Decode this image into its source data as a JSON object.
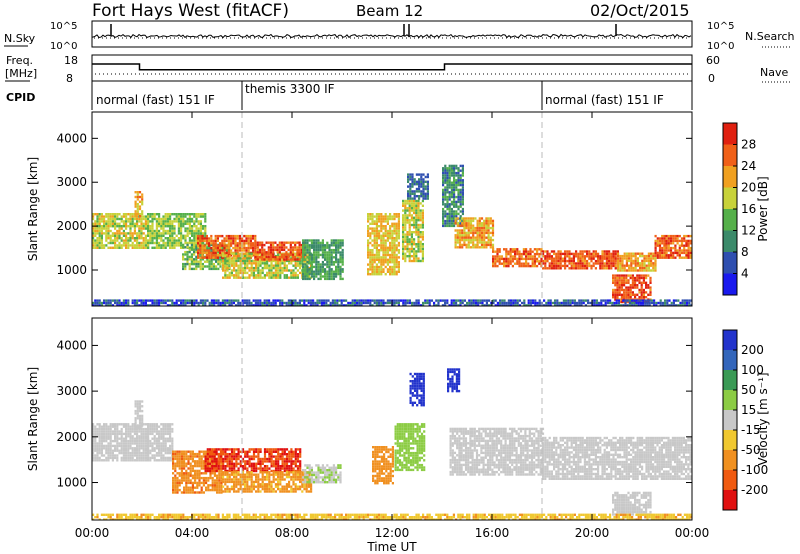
{
  "header": {
    "site_title": "Fort Hays West (fitACF)",
    "beam": "Beam 12",
    "date": "02/Oct/2015"
  },
  "top_panels": {
    "nsky_label": "N.Sky",
    "nsearch_label": "N.Search",
    "noise_ticks_left": [
      "10^5",
      "10^0"
    ],
    "noise_ticks_right": [
      "10^5",
      "10^0"
    ],
    "freq_label_line1": "Freq.",
    "freq_label_line2": "[MHz]",
    "freq_ticks": [
      "18",
      "8"
    ],
    "nave_label": "Nave",
    "nave_ticks": [
      "60",
      "0"
    ],
    "cpid_label": "CPID",
    "cpid_segments": [
      {
        "label": "normal (fast) 151 IF",
        "start_hour": 0,
        "end_hour": 6
      },
      {
        "label": "themis 3300 IF",
        "start_hour": 6,
        "end_hour": 18
      },
      {
        "label": "normal (fast) 151 IF",
        "start_hour": 18,
        "end_hour": 24
      }
    ],
    "freq_steps": [
      {
        "start_hour": 0,
        "end_hour": 1.9,
        "mhz": 14.8
      },
      {
        "start_hour": 1.9,
        "end_hour": 14.1,
        "mhz": 12.2
      },
      {
        "start_hour": 14.1,
        "end_hour": 24,
        "mhz": 14.8
      }
    ]
  },
  "range_axis": {
    "ylabel": "Slant Range [km]",
    "ticks": [
      "1000",
      "2000",
      "3000",
      "4000"
    ],
    "ylim": [
      180,
      4600
    ]
  },
  "time_axis": {
    "xlabel": "Time UT",
    "ticks": [
      "00:00",
      "04:00",
      "08:00",
      "12:00",
      "16:00",
      "20:00",
      "00:00"
    ]
  },
  "power_colorbar": {
    "title": "Power [dB]",
    "ticks": [
      "4",
      "8",
      "12",
      "16",
      "20",
      "24",
      "28"
    ],
    "colors": [
      "#1a1aee",
      "#2f4fb0",
      "#3b8a6a",
      "#55b04a",
      "#c8d23a",
      "#f0a020",
      "#f06018",
      "#e02010"
    ]
  },
  "velocity_colorbar": {
    "title": "Velocity [m s⁻¹]",
    "ticks": [
      "200",
      "100",
      "50",
      "15",
      "-15",
      "-50",
      "-100",
      "-200"
    ],
    "colors": [
      "#2233cc",
      "#3366bb",
      "#3a9a55",
      "#8ccc44",
      "#c8c8c8",
      "#f0c830",
      "#f09020",
      "#f05a10",
      "#e01010"
    ]
  },
  "chart_data": [
    {
      "type": "heatmap",
      "name": "power",
      "x_unit": "hour UT",
      "y_unit": "km",
      "regions": [
        {
          "t0": 0.0,
          "t1": 2.2,
          "r0": 1500,
          "r1": 2300,
          "power": 18
        },
        {
          "t0": 1.7,
          "t1": 2.0,
          "r0": 2200,
          "r1": 2800,
          "power": 22
        },
        {
          "t0": 2.2,
          "t1": 4.5,
          "r0": 1500,
          "r1": 2300,
          "power": 16
        },
        {
          "t0": 3.6,
          "t1": 5.5,
          "r0": 1000,
          "r1": 1600,
          "power": 14
        },
        {
          "t0": 4.2,
          "t1": 6.5,
          "r0": 1300,
          "r1": 1800,
          "power": 26
        },
        {
          "t0": 5.2,
          "t1": 8.8,
          "r0": 800,
          "r1": 1400,
          "power": 18
        },
        {
          "t0": 6.5,
          "t1": 8.5,
          "r0": 1250,
          "r1": 1650,
          "power": 27
        },
        {
          "t0": 8.4,
          "t1": 10.0,
          "r0": 800,
          "r1": 1700,
          "power": 12
        },
        {
          "t0": 11.0,
          "t1": 12.3,
          "r0": 900,
          "r1": 2300,
          "power": 20
        },
        {
          "t0": 12.4,
          "t1": 13.2,
          "r0": 1200,
          "r1": 2600,
          "power": 18
        },
        {
          "t0": 12.6,
          "t1": 13.4,
          "r0": 2600,
          "r1": 3200,
          "power": 8
        },
        {
          "t0": 14.0,
          "t1": 14.8,
          "r0": 2000,
          "r1": 3400,
          "power": 10
        },
        {
          "t0": 14.5,
          "t1": 16.0,
          "r0": 1500,
          "r1": 2200,
          "power": 22
        },
        {
          "t0": 16.0,
          "t1": 18.0,
          "r0": 1100,
          "r1": 1500,
          "power": 26
        },
        {
          "t0": 18.0,
          "t1": 21.0,
          "r0": 1050,
          "r1": 1450,
          "power": 27
        },
        {
          "t0": 21.0,
          "t1": 22.5,
          "r0": 1000,
          "r1": 1400,
          "power": 22
        },
        {
          "t0": 22.5,
          "t1": 24.0,
          "r0": 1300,
          "r1": 1800,
          "power": 26
        },
        {
          "t0": 20.8,
          "t1": 22.3,
          "r0": 250,
          "r1": 900,
          "power": 27
        },
        {
          "t0": 0.0,
          "t1": 24.0,
          "r0": 180,
          "r1": 330,
          "power": 6
        }
      ]
    },
    {
      "type": "heatmap",
      "name": "velocity",
      "x_unit": "hour UT",
      "y_unit": "km",
      "regions": [
        {
          "t0": 0.0,
          "t1": 2.2,
          "r0": 1500,
          "r1": 2300,
          "velocity": 0
        },
        {
          "t0": 1.7,
          "t1": 2.0,
          "r0": 2200,
          "r1": 2800,
          "velocity": 0
        },
        {
          "t0": 2.2,
          "t1": 3.2,
          "r0": 1500,
          "r1": 2300,
          "velocity": 0
        },
        {
          "t0": 3.2,
          "t1": 5.2,
          "r0": 800,
          "r1": 1700,
          "velocity": -90
        },
        {
          "t0": 4.5,
          "t1": 8.3,
          "r0": 1250,
          "r1": 1750,
          "velocity": -200
        },
        {
          "t0": 5.2,
          "t1": 8.8,
          "r0": 800,
          "r1": 1250,
          "velocity": -60
        },
        {
          "t0": 8.4,
          "t1": 9.9,
          "r0": 1000,
          "r1": 1400,
          "velocity": 10
        },
        {
          "t0": 11.2,
          "t1": 12.0,
          "r0": 1000,
          "r1": 1800,
          "velocity": -70
        },
        {
          "t0": 12.1,
          "t1": 13.3,
          "r0": 1300,
          "r1": 2300,
          "velocity": 35
        },
        {
          "t0": 12.7,
          "t1": 13.3,
          "r0": 2700,
          "r1": 3400,
          "velocity": 250
        },
        {
          "t0": 14.2,
          "t1": 14.7,
          "r0": 3000,
          "r1": 3500,
          "velocity": 250
        },
        {
          "t0": 14.3,
          "t1": 18.0,
          "r0": 1200,
          "r1": 2200,
          "velocity": 0
        },
        {
          "t0": 18.0,
          "t1": 24.0,
          "r0": 1100,
          "r1": 2000,
          "velocity": 0
        },
        {
          "t0": 20.8,
          "t1": 22.3,
          "r0": 300,
          "r1": 800,
          "velocity": 0
        },
        {
          "t0": 0.0,
          "t1": 24.0,
          "r0": 180,
          "r1": 320,
          "velocity": -40
        }
      ]
    }
  ]
}
